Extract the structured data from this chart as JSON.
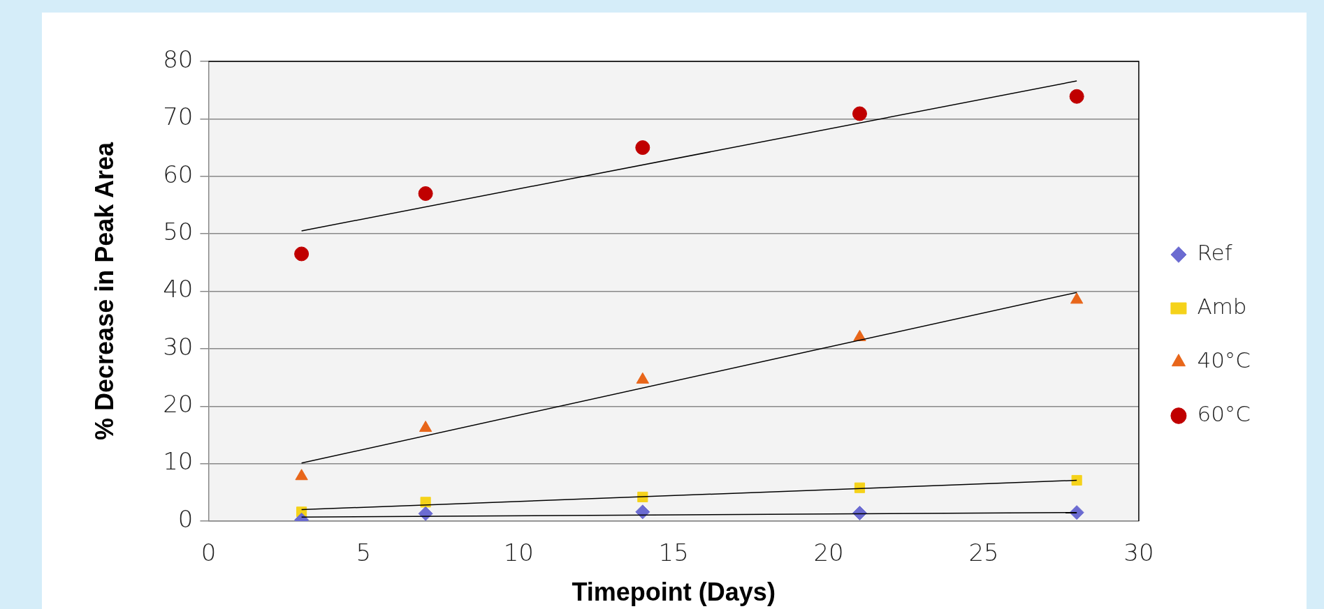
{
  "chart_data": {
    "type": "scatter",
    "xlabel": "Timepoint (Days)",
    "ylabel": "% Decrease in Peak Area",
    "xlim": [
      0,
      30
    ],
    "xticks": [
      0,
      5,
      10,
      15,
      20,
      25,
      30
    ],
    "ylim": [
      0,
      80
    ],
    "yticks": [
      0,
      10,
      20,
      30,
      40,
      50,
      60,
      70,
      80
    ],
    "grid": "y",
    "legend": "right",
    "series": [
      {
        "name": "Ref",
        "color": "#6b6bd1",
        "marker": "diamond",
        "x": [
          3,
          7,
          14,
          21,
          28
        ],
        "values": [
          0.2,
          1.3,
          1.6,
          1.4,
          1.5
        ]
      },
      {
        "name": "Amb",
        "color": "#f5d21a",
        "marker": "square",
        "x": [
          3,
          7,
          14,
          21,
          28
        ],
        "values": [
          1.6,
          3.3,
          4.2,
          5.8,
          7.1
        ]
      },
      {
        "name": "40°C",
        "color": "#e8661a",
        "marker": "triangle",
        "x": [
          3,
          7,
          14,
          21,
          28
        ],
        "values": [
          7.8,
          16.2,
          24.6,
          32.0,
          38.5
        ]
      },
      {
        "name": "60°C",
        "color": "#c00000",
        "marker": "circle",
        "x": [
          3,
          7,
          14,
          21,
          28
        ],
        "values": [
          46.5,
          57.0,
          65.0,
          70.9,
          73.9
        ]
      },
      {
        "type": "line",
        "color": "#000000",
        "marker": "none",
        "x": [
          3,
          28
        ],
        "values": [
          0.7,
          1.5
        ]
      },
      {
        "type": "line",
        "color": "#000000",
        "marker": "none",
        "x": [
          3,
          28
        ],
        "values": [
          2.0,
          7.1
        ]
      },
      {
        "type": "line",
        "color": "#000000",
        "marker": "none",
        "x": [
          3,
          28
        ],
        "values": [
          10.1,
          39.8
        ]
      },
      {
        "type": "line",
        "color": "#000000",
        "marker": "none",
        "x": [
          3,
          28
        ],
        "values": [
          50.5,
          76.6
        ]
      }
    ]
  }
}
